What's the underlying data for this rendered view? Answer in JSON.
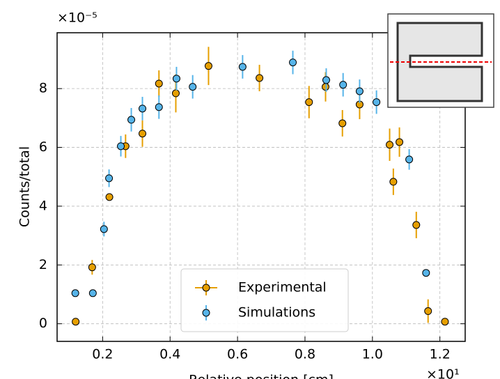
{
  "chart_data": {
    "type": "errorbar",
    "xlabel": "Relative position [cm]",
    "ylabel": "Counts/total",
    "x_offset_label": "×10¹",
    "y_offset_label": "×10⁻⁵",
    "xlim": [
      0.065,
      1.275
    ],
    "ylim": [
      -0.6,
      9.9
    ],
    "xticks": [
      0.2,
      0.4,
      0.6,
      0.8,
      {
        "value": 1,
        "label": "1.0"
      },
      1.2
    ],
    "yticks": [
      0,
      2,
      4,
      6,
      8
    ],
    "grid": true,
    "legend": "lower center",
    "series": [
      {
        "name": "Experimental",
        "color": "#e69f00",
        "x": [
          0.12,
          0.169,
          0.22,
          0.268,
          0.318,
          0.367,
          0.417,
          0.514,
          0.665,
          0.812,
          0.861,
          0.911,
          0.962,
          1.051,
          1.062,
          1.08,
          1.13,
          1.165,
          1.215
        ],
        "values": [
          0.07,
          1.92,
          4.31,
          6.04,
          6.47,
          8.17,
          7.84,
          8.77,
          8.36,
          7.54,
          8.06,
          6.82,
          7.46,
          6.09,
          4.83,
          6.18,
          3.36,
          0.43,
          0.07
        ],
        "errors": [
          0.1,
          0.25,
          0.1,
          0.4,
          0.45,
          0.45,
          0.65,
          0.65,
          0.45,
          0.55,
          0.5,
          0.45,
          0.5,
          0.55,
          0.45,
          0.5,
          0.45,
          0.4,
          0.05
        ]
      },
      {
        "name": "Simulations",
        "color": "#56b4e9",
        "x": [
          0.119,
          0.171,
          0.204,
          0.219,
          0.254,
          0.285,
          0.318,
          0.367,
          0.419,
          0.467,
          0.615,
          0.764,
          0.863,
          0.913,
          0.962,
          1.012,
          1.109,
          1.159
        ],
        "values": [
          1.04,
          1.04,
          3.22,
          4.95,
          6.04,
          6.94,
          7.32,
          7.37,
          8.34,
          8.06,
          8.74,
          8.89,
          8.29,
          8.13,
          7.91,
          7.54,
          5.59,
          1.73
        ],
        "errors": [
          0.1,
          0.1,
          0.25,
          0.3,
          0.35,
          0.4,
          0.4,
          0.4,
          0.4,
          0.4,
          0.4,
          0.4,
          0.4,
          0.4,
          0.4,
          0.4,
          0.35,
          0.1
        ]
      }
    ]
  }
}
